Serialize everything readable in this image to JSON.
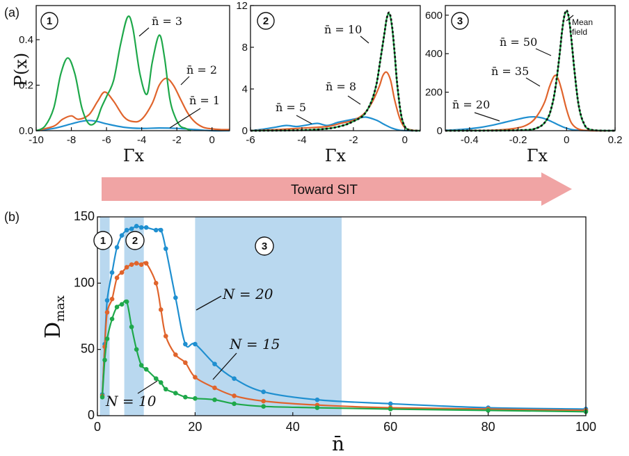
{
  "panel_labels": {
    "a": "(a)",
    "b": "(b)"
  },
  "arrow": {
    "label": "Toward SIT",
    "color": "#f0a4a4"
  },
  "colors": {
    "blue": "#1f8fd0",
    "orange": "#e0642c",
    "green": "#1ea84a",
    "region": "#b9d8ef"
  },
  "chart_data": [
    {
      "type": "line",
      "panel": "a1",
      "marker": "1",
      "xlabel": "Γx",
      "ylabel": "P(x)",
      "xlim": [
        -10,
        1
      ],
      "ylim": [
        0,
        0.55
      ],
      "xticks": [
        -10,
        -8,
        -6,
        -4,
        -2,
        0
      ],
      "yticks": [
        0.0,
        0.2,
        0.4
      ],
      "series": [
        {
          "name": "n̄ = 1",
          "color": "#1f8fd0",
          "x": [
            -10,
            -9,
            -8,
            -7.5,
            -7,
            -6.5,
            -6,
            -5,
            -4,
            -3,
            -2,
            -1,
            0,
            1
          ],
          "y": [
            0.0,
            0.01,
            0.03,
            0.04,
            0.045,
            0.04,
            0.03,
            0.015,
            0.01,
            0.012,
            0.01,
            0.005,
            0.0,
            0.0
          ]
        },
        {
          "name": "n̄ = 2",
          "color": "#e0642c",
          "x": [
            -10,
            -9,
            -8.5,
            -8,
            -7.6,
            -7,
            -6.5,
            -6.1,
            -5.6,
            -5,
            -4.5,
            -4,
            -3.4,
            -3,
            -2.6,
            -2.2,
            -1.8,
            -1.4,
            -1,
            -0.5,
            0,
            0.5,
            1
          ],
          "y": [
            0.0,
            0.02,
            0.05,
            0.065,
            0.05,
            0.07,
            0.13,
            0.17,
            0.13,
            0.06,
            0.04,
            0.05,
            0.12,
            0.2,
            0.23,
            0.2,
            0.14,
            0.08,
            0.04,
            0.015,
            0.008,
            0.005,
            0.005
          ]
        },
        {
          "name": "n̄ = 3",
          "color": "#1ea84a",
          "x": [
            -10,
            -9.5,
            -9,
            -8.6,
            -8.2,
            -7.8,
            -7.4,
            -7,
            -6.6,
            -6.3,
            -6,
            -5.6,
            -5.2,
            -4.8,
            -4.5,
            -4.1,
            -3.7,
            -3.4,
            -3,
            -2.7,
            -2.4,
            -2.1,
            -1.8,
            -1.5,
            -1.2
          ],
          "y": [
            0.0,
            0.02,
            0.1,
            0.25,
            0.32,
            0.25,
            0.1,
            0.03,
            0.04,
            0.1,
            0.15,
            0.22,
            0.38,
            0.5,
            0.45,
            0.25,
            0.16,
            0.3,
            0.42,
            0.32,
            0.14,
            0.06,
            0.02,
            0.01,
            0.0
          ]
        }
      ]
    },
    {
      "type": "line",
      "panel": "a2",
      "marker": "2",
      "xlabel": "Γx",
      "xlim": [
        -6,
        0.6
      ],
      "ylim": [
        0,
        12
      ],
      "xticks": [
        -6,
        -4,
        -2,
        0
      ],
      "yticks": [
        0,
        4,
        8,
        12
      ],
      "series": [
        {
          "name": "n̄ = 5",
          "color": "#1f8fd0",
          "x": [
            -6,
            -5.5,
            -5,
            -4.6,
            -4.2,
            -3.8,
            -3.4,
            -3,
            -2.6,
            -2.2,
            -1.8,
            -1.5,
            -1.1,
            -0.8,
            -0.5,
            -0.2,
            0.2,
            0.6
          ],
          "y": [
            0.0,
            0.15,
            0.35,
            0.5,
            0.4,
            0.55,
            0.7,
            0.5,
            0.8,
            1.0,
            1.2,
            1.3,
            1.0,
            0.6,
            0.25,
            0.05,
            0.0,
            0.0
          ]
        },
        {
          "name": "n̄ = 8",
          "color": "#e0642c",
          "x": [
            -6,
            -5,
            -4,
            -3,
            -2.5,
            -2,
            -1.6,
            -1.3,
            -1.0,
            -0.85,
            -0.7,
            -0.55,
            -0.4,
            -0.2,
            0,
            0.3,
            0.6
          ],
          "y": [
            0.0,
            0.1,
            0.25,
            0.4,
            0.7,
            1.0,
            1.6,
            2.6,
            4.2,
            5.3,
            5.6,
            4.8,
            3.0,
            1.2,
            0.3,
            0.05,
            0.0
          ]
        },
        {
          "name": "n̄ = 10",
          "color": "#1ea84a",
          "x": [
            -6,
            -4,
            -3,
            -2.4,
            -2,
            -1.6,
            -1.3,
            -1.1,
            -0.95,
            -0.8,
            -0.7,
            -0.6,
            -0.5,
            -0.4,
            -0.3,
            -0.15,
            0,
            0.2,
            0.6
          ],
          "y": [
            0.0,
            0.05,
            0.2,
            0.5,
            0.9,
            1.5,
            2.8,
            4.5,
            6.8,
            9.2,
            10.8,
            11.2,
            10.0,
            7.5,
            4.5,
            1.6,
            0.4,
            0.05,
            0.0
          ]
        },
        {
          "name": "Mean field",
          "color": "#111111",
          "dashed": true,
          "x": [
            -6,
            -4,
            -3,
            -2.4,
            -2,
            -1.6,
            -1.3,
            -1.1,
            -0.95,
            -0.8,
            -0.7,
            -0.6,
            -0.5,
            -0.4,
            -0.3,
            -0.15,
            0,
            0.2,
            0.6
          ],
          "y": [
            0.0,
            0.05,
            0.2,
            0.5,
            0.9,
            1.5,
            2.8,
            4.5,
            6.8,
            9.2,
            10.8,
            11.3,
            10.1,
            7.6,
            4.6,
            1.6,
            0.4,
            0.05,
            0.0
          ]
        }
      ]
    },
    {
      "type": "line",
      "panel": "a3",
      "marker": "3",
      "xlabel": "Γx",
      "xlim": [
        -0.5,
        0.2
      ],
      "ylim": [
        0,
        650
      ],
      "xticks": [
        -0.4,
        -0.2,
        0,
        0.2
      ],
      "yticks": [
        0,
        200,
        400,
        600
      ],
      "series": [
        {
          "name": "n̄ = 20",
          "color": "#1f8fd0",
          "x": [
            -0.5,
            -0.45,
            -0.4,
            -0.35,
            -0.3,
            -0.25,
            -0.2,
            -0.16,
            -0.13,
            -0.1,
            -0.07,
            -0.04,
            -0.01,
            0.02,
            0.05,
            0.1,
            0.15,
            0.2
          ],
          "y": [
            2,
            5,
            10,
            18,
            30,
            45,
            60,
            70,
            72,
            66,
            52,
            34,
            17,
            6,
            2,
            0,
            0,
            0
          ]
        },
        {
          "name": "n̄ = 35",
          "color": "#e0642c",
          "x": [
            -0.5,
            -0.3,
            -0.2,
            -0.15,
            -0.12,
            -0.09,
            -0.07,
            -0.05,
            -0.035,
            -0.02,
            0,
            0.02,
            0.05,
            0.1,
            0.2
          ],
          "y": [
            0,
            3,
            15,
            40,
            80,
            150,
            230,
            285,
            270,
            210,
            110,
            40,
            8,
            0,
            0
          ]
        },
        {
          "name": "n̄ = 50",
          "color": "#1ea84a",
          "x": [
            -0.5,
            -0.2,
            -0.12,
            -0.08,
            -0.06,
            -0.045,
            -0.03,
            -0.02,
            -0.01,
            0,
            0.01,
            0.02,
            0.035,
            0.05,
            0.07,
            0.1,
            0.2
          ],
          "y": [
            0,
            2,
            15,
            60,
            130,
            230,
            380,
            500,
            590,
            620,
            580,
            470,
            280,
            130,
            40,
            5,
            0
          ]
        },
        {
          "name": "Mean field",
          "color": "#111111",
          "dashed": true,
          "x": [
            -0.5,
            -0.2,
            -0.12,
            -0.08,
            -0.06,
            -0.045,
            -0.03,
            -0.02,
            -0.01,
            0,
            0.01,
            0.02,
            0.035,
            0.05,
            0.07,
            0.1,
            0.2
          ],
          "y": [
            0,
            2,
            15,
            60,
            132,
            232,
            382,
            502,
            592,
            625,
            583,
            473,
            283,
            132,
            42,
            5,
            0
          ]
        }
      ]
    },
    {
      "type": "line",
      "panel": "b",
      "xlabel": "n̄",
      "ylabel": "D_max",
      "xlim": [
        0,
        100
      ],
      "ylim": [
        0,
        150
      ],
      "xticks": [
        0,
        20,
        40,
        60,
        80,
        100
      ],
      "yticks": [
        0,
        50,
        100,
        150
      ],
      "regions": [
        {
          "marker": "1",
          "x": [
            0.5,
            2.5
          ]
        },
        {
          "marker": "2",
          "x": [
            5.5,
            9.5
          ]
        },
        {
          "marker": "3",
          "x": [
            20,
            50
          ]
        }
      ],
      "series": [
        {
          "name": "N = 20",
          "color": "#1f8fd0",
          "x": [
            1,
            1.5,
            2,
            3,
            4,
            5,
            6,
            7,
            8,
            9,
            10,
            12,
            13,
            14,
            16,
            18,
            20,
            24,
            28,
            34,
            45,
            60,
            80,
            100
          ],
          "y": [
            16,
            54,
            87,
            108,
            127,
            136,
            140,
            141,
            143,
            142,
            142,
            140,
            140,
            126,
            89,
            54,
            54,
            39,
            28,
            18,
            12,
            9,
            6,
            5
          ]
        },
        {
          "name": "N = 15",
          "color": "#e0642c",
          "x": [
            1,
            1.5,
            2,
            3,
            4,
            5,
            6,
            7,
            8,
            9,
            10,
            12,
            13,
            14,
            16,
            18,
            20,
            24,
            28,
            34,
            45,
            60,
            80,
            100
          ],
          "y": [
            15,
            52,
            78,
            88,
            104,
            108,
            112,
            114,
            115,
            114,
            115,
            100,
            80,
            60,
            46,
            40,
            29,
            21,
            15,
            11,
            8,
            6,
            5,
            4
          ]
        },
        {
          "name": "N = 10",
          "color": "#1ea84a",
          "x": [
            1,
            1.5,
            2,
            3,
            4,
            5,
            6,
            7,
            8,
            9,
            10,
            12,
            13,
            14,
            16,
            18,
            20,
            24,
            28,
            34,
            45,
            60,
            80,
            100
          ],
          "y": [
            14,
            42,
            58,
            73,
            82,
            84,
            86,
            67,
            50,
            38,
            35,
            28,
            25,
            20,
            17,
            14,
            13,
            12,
            9,
            7,
            6,
            5,
            4,
            3
          ]
        }
      ]
    }
  ],
  "labels": {
    "a1": {
      "n1": "n̄ = 1",
      "n2": "n̄ = 2",
      "n3": "n̄ = 3"
    },
    "a2": {
      "n5": "n̄ = 5",
      "n8": "n̄ = 8",
      "n10": "n̄ = 10"
    },
    "a3": {
      "n20": "n̄ = 20",
      "n35": "n̄ = 35",
      "n50": "n̄ = 50",
      "mf1": "Mean",
      "mf2": "field"
    },
    "b": {
      "N20": "N = 20",
      "N15": "N = 15",
      "N10": "N = 10"
    }
  }
}
